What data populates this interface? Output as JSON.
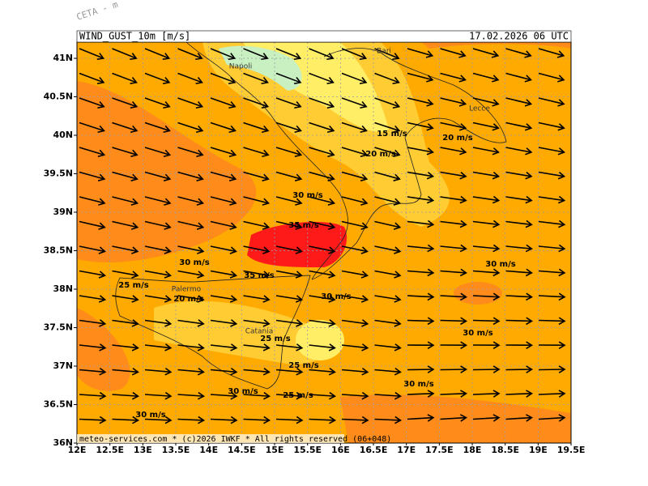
{
  "header": {
    "model": "CETA - m",
    "field": "WIND_GUST_10m [m/s]",
    "valid": "17.02.2026 06 UTC"
  },
  "footer": "meteo-services.com * (c)2026 IWKF * All rights reserved (06+048)",
  "lat_labels": [
    "41N",
    "40.5N",
    "40N",
    "39.5N",
    "39N",
    "38.5N",
    "38N",
    "37.5N",
    "37N",
    "36.5N",
    "36N"
  ],
  "lon_labels": [
    "12E",
    "12.5E",
    "13E",
    "13.5E",
    "14E",
    "14.5E",
    "15E",
    "15.5E",
    "16E",
    "16.5E",
    "17E",
    "17.5E",
    "18E",
    "18.5E",
    "19E",
    "19.5E"
  ],
  "places": [
    "Napoli",
    "Bari",
    "Lecce",
    "Palermo",
    "Catania"
  ],
  "contour_labels": [
    "15 m/s",
    "20 m/s",
    "20 m/s",
    "30 m/s",
    "35 m/s",
    "30 m/s",
    "30 m/s",
    "35 m/s",
    "25 m/s",
    "20 m/s",
    "30 m/s",
    "30 m/s",
    "25 m/s",
    "25 m/s",
    "30 m/s",
    "30 m/s",
    "25 m/s",
    "30 m/s"
  ]
}
